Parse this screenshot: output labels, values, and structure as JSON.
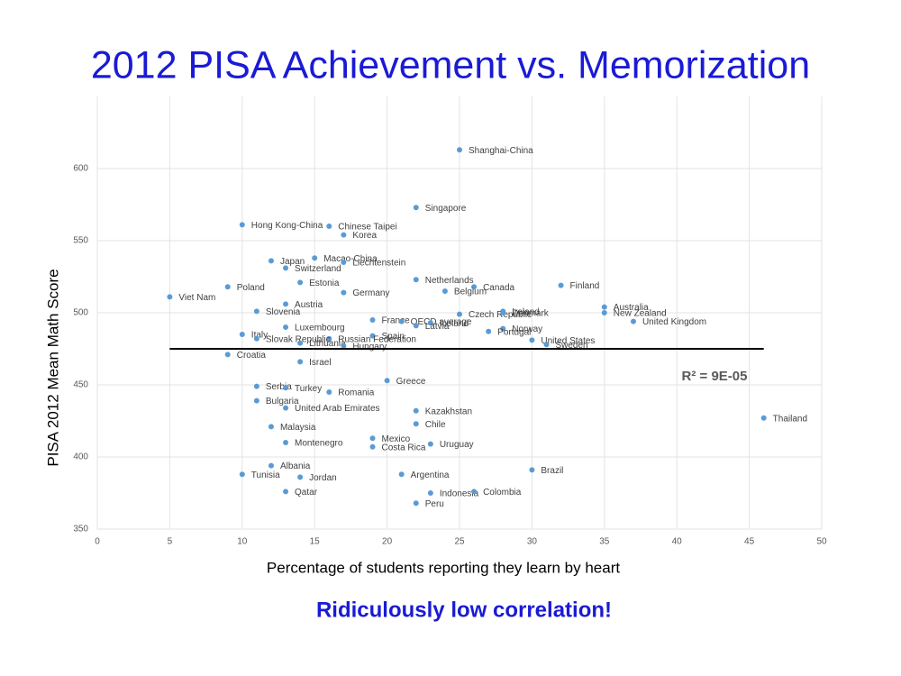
{
  "chart_data": {
    "type": "scatter",
    "title": "2012 PISA Achievement vs. Memorization",
    "ylabel": "PISA 2012 Mean Math Score",
    "xlabel": "Percentage of students reporting they learn by heart",
    "footnote": "Ridiculously low correlation!",
    "r2_label": "R² = 9E-05",
    "color": "#5b9bd5",
    "grid": true,
    "xlim": [
      0,
      50
    ],
    "xticks": [
      0,
      5,
      10,
      15,
      20,
      25,
      30,
      35,
      40,
      45,
      50
    ],
    "ylim": [
      350,
      650
    ],
    "yticks": [
      350,
      400,
      450,
      500,
      550,
      600
    ],
    "trendline": {
      "x": [
        5,
        46
      ],
      "y": [
        475,
        475
      ]
    },
    "point_labels": [
      "Shanghai-China",
      "Singapore",
      "Hong Kong-China",
      "Chinese Taipei",
      "Korea",
      "Japan",
      "Macao-China",
      "Liechtenstein",
      "Switzerland",
      "Estonia",
      "Netherlands",
      "Canada",
      "Finland",
      "Poland",
      "Belgium",
      "Germany",
      "Viet Nam",
      "Austria",
      "Ireland",
      "Australia",
      "New Zealand",
      "Slovenia",
      "Czech Republic",
      "United Kingdom",
      "France",
      "OECD average",
      "Iceland",
      "Latvia",
      "Denmark",
      "Luxembourg",
      "Norway",
      "Portugal",
      "Italy",
      "Spain",
      "Russian Federation",
      "Slovak Republic",
      "United States",
      "Lithuania",
      "Sweden",
      "Hungary",
      "Croatia",
      "Israel",
      "Greece",
      "Serbia",
      "Turkey",
      "Romania",
      "Bulgaria",
      "United Arab Emirates",
      "Kazakhstan",
      "Thailand",
      "Chile",
      "Malaysia",
      "Mexico",
      "Montenegro",
      "Uruguay",
      "Costa Rica",
      "Albania",
      "Brazil",
      "Argentina",
      "Tunisia",
      "Jordan",
      "Qatar",
      "Indonesia",
      "Colombia",
      "Peru"
    ],
    "x": [
      25,
      22,
      10,
      16,
      17,
      12,
      15,
      17,
      13,
      14,
      22,
      26,
      32,
      9,
      24,
      17,
      5,
      13,
      28,
      35,
      35,
      11,
      25,
      37,
      19,
      21,
      23,
      22,
      28,
      13,
      28,
      27,
      10,
      19,
      16,
      11,
      30,
      14,
      31,
      17,
      9,
      14,
      20,
      11,
      13,
      16,
      11,
      13,
      22,
      46,
      22,
      12,
      19,
      13,
      23,
      19,
      12,
      30,
      21,
      10,
      14,
      13,
      23,
      26,
      22
    ],
    "values": [
      613,
      573,
      561,
      560,
      554,
      536,
      538,
      535,
      531,
      521,
      523,
      518,
      519,
      518,
      515,
      514,
      511,
      506,
      501,
      504,
      500,
      501,
      499,
      494,
      495,
      494,
      493,
      491,
      500,
      490,
      489,
      487,
      485,
      484,
      482,
      482,
      481,
      479,
      478,
      477,
      471,
      466,
      453,
      449,
      448,
      445,
      439,
      434,
      432,
      427,
      423,
      421,
      413,
      410,
      409,
      407,
      394,
      391,
      388,
      388,
      386,
      376,
      375,
      376,
      368
    ]
  }
}
